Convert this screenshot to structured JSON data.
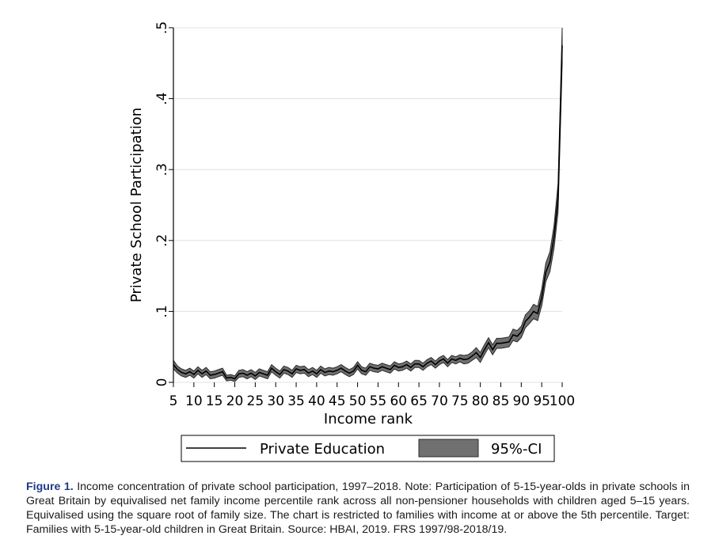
{
  "chart_data": {
    "type": "line",
    "xlabel": "Income rank",
    "ylabel": "Private School Participation",
    "xlim": [
      5,
      100
    ],
    "ylim": [
      0,
      0.5
    ],
    "x_ticks": [
      5,
      10,
      15,
      20,
      25,
      30,
      35,
      40,
      45,
      50,
      55,
      60,
      65,
      70,
      75,
      80,
      85,
      90,
      95,
      100
    ],
    "x_tick_labels": [
      "5",
      "10",
      "15",
      "20",
      "25",
      "30",
      "35",
      "40",
      "45",
      "50",
      "55",
      "60",
      "65",
      "70",
      "75",
      "80",
      "85",
      "90",
      "95",
      "100"
    ],
    "y_ticks": [
      0,
      0.1,
      0.2,
      0.3,
      0.4,
      0.5
    ],
    "y_tick_labels": [
      "0",
      ".1",
      ".2",
      ".3",
      ".4",
      ".5"
    ],
    "grid": "horizontal",
    "legend_position": "bottom",
    "colors": {
      "line": "#000000",
      "ci": "#707070",
      "ci_edge": "#2a2a2a",
      "grid": "#e0e0e0"
    },
    "series": [
      {
        "name": "Private Education",
        "x": [
          5,
          6,
          7,
          8,
          9,
          10,
          11,
          12,
          13,
          14,
          15,
          16,
          17,
          18,
          19,
          20,
          21,
          22,
          23,
          24,
          25,
          26,
          27,
          28,
          29,
          30,
          31,
          32,
          33,
          34,
          35,
          36,
          37,
          38,
          39,
          40,
          41,
          42,
          43,
          44,
          45,
          46,
          47,
          48,
          49,
          50,
          51,
          52,
          53,
          54,
          55,
          56,
          57,
          58,
          59,
          60,
          61,
          62,
          63,
          64,
          65,
          66,
          67,
          68,
          69,
          70,
          71,
          72,
          73,
          74,
          75,
          76,
          77,
          78,
          79,
          80,
          81,
          82,
          83,
          84,
          85,
          86,
          87,
          88,
          89,
          90,
          91,
          92,
          93,
          94,
          95,
          96,
          97,
          98,
          99,
          100
        ],
        "values": [
          0.025,
          0.018,
          0.014,
          0.012,
          0.015,
          0.011,
          0.017,
          0.012,
          0.016,
          0.01,
          0.011,
          0.013,
          0.015,
          0.006,
          0.007,
          0.005,
          0.012,
          0.013,
          0.01,
          0.013,
          0.009,
          0.014,
          0.012,
          0.01,
          0.02,
          0.015,
          0.011,
          0.018,
          0.016,
          0.012,
          0.019,
          0.017,
          0.018,
          0.013,
          0.016,
          0.012,
          0.018,
          0.014,
          0.016,
          0.015,
          0.017,
          0.02,
          0.016,
          0.013,
          0.016,
          0.024,
          0.017,
          0.015,
          0.022,
          0.02,
          0.019,
          0.022,
          0.02,
          0.018,
          0.024,
          0.021,
          0.022,
          0.025,
          0.021,
          0.026,
          0.026,
          0.022,
          0.027,
          0.03,
          0.025,
          0.03,
          0.033,
          0.027,
          0.033,
          0.031,
          0.034,
          0.032,
          0.033,
          0.037,
          0.042,
          0.035,
          0.046,
          0.056,
          0.046,
          0.055,
          0.055,
          0.056,
          0.057,
          0.067,
          0.065,
          0.071,
          0.086,
          0.092,
          0.1,
          0.097,
          0.12,
          0.155,
          0.17,
          0.205,
          0.26,
          0.475
        ]
      }
    ],
    "ci_band": {
      "name": "95%-CI",
      "half_width": [
        0.006,
        0.005,
        0.005,
        0.005,
        0.005,
        0.005,
        0.005,
        0.005,
        0.005,
        0.005,
        0.005,
        0.005,
        0.005,
        0.004,
        0.004,
        0.004,
        0.005,
        0.005,
        0.005,
        0.005,
        0.005,
        0.005,
        0.005,
        0.005,
        0.005,
        0.005,
        0.005,
        0.005,
        0.005,
        0.005,
        0.005,
        0.005,
        0.005,
        0.005,
        0.005,
        0.005,
        0.005,
        0.005,
        0.005,
        0.005,
        0.005,
        0.005,
        0.005,
        0.005,
        0.005,
        0.005,
        0.005,
        0.005,
        0.005,
        0.005,
        0.005,
        0.005,
        0.005,
        0.005,
        0.005,
        0.005,
        0.005,
        0.005,
        0.005,
        0.005,
        0.005,
        0.005,
        0.005,
        0.005,
        0.005,
        0.005,
        0.005,
        0.005,
        0.005,
        0.005,
        0.005,
        0.006,
        0.006,
        0.006,
        0.007,
        0.007,
        0.007,
        0.007,
        0.007,
        0.007,
        0.007,
        0.007,
        0.007,
        0.008,
        0.008,
        0.008,
        0.009,
        0.009,
        0.01,
        0.01,
        0.012,
        0.013,
        0.014,
        0.016,
        0.02,
        0.025
      ]
    }
  },
  "legend": {
    "line_label": "Private Education",
    "ci_label": "95%-CI"
  },
  "caption": {
    "label": "Figure 1.",
    "text": "Income concentration of private school participation, 1997–2018. Note: Participation of 5-15-year-olds in private schools in Great Britain by equivalised net family income percentile rank across all non-pensioner households with children aged 5–15 years. Equivalised using the square root of family size. The chart is restricted to families with income at or above the 5th percentile. Target: Families with 5-15-year-old children in Great Britain. Source: HBAI, 2019. FRS 1997/98-2018/19."
  }
}
